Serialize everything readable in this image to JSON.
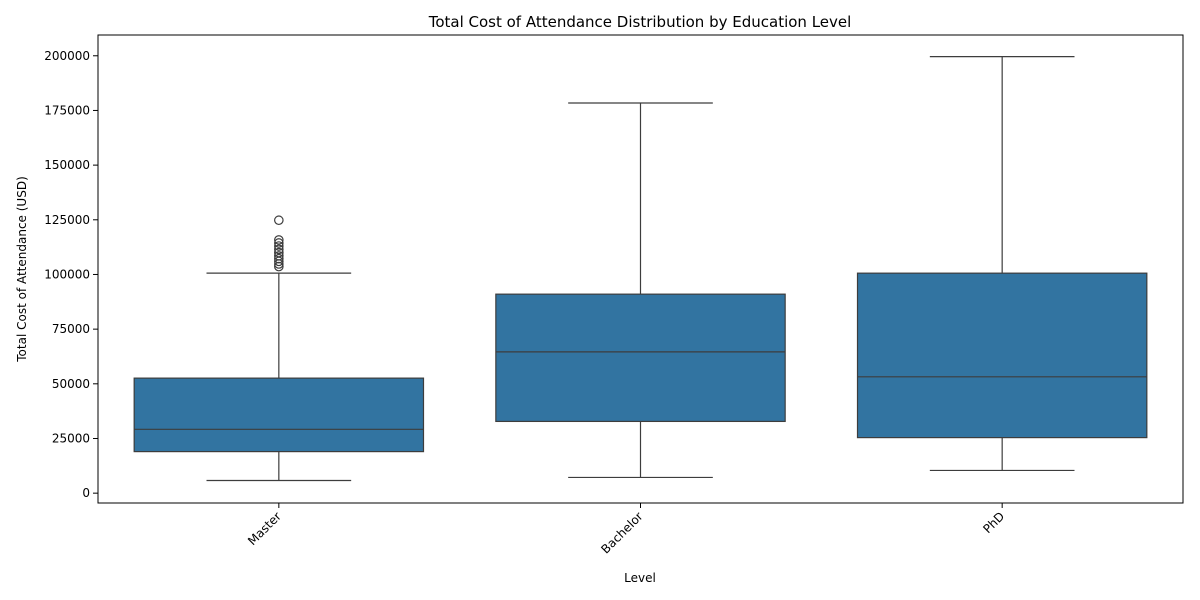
{
  "chart_data": {
    "type": "box",
    "title": "Total Cost of Attendance Distribution by Education Level",
    "xlabel": "Level",
    "ylabel": "Total Cost of Attendance (USD)",
    "ylim": [
      -4500,
      209500
    ],
    "yticks": [
      0,
      25000,
      50000,
      75000,
      100000,
      125000,
      150000,
      175000,
      200000
    ],
    "categories": [
      "Master",
      "Bachelor",
      "PhD"
    ],
    "box_color": "#3274a1",
    "line_color": "#3d3d3d",
    "grid": false,
    "legend": "none",
    "boxes": [
      {
        "name": "Master",
        "whisker_low": 5800,
        "q1": 19000,
        "median": 29200,
        "q3": 52600,
        "whisker_high": 100600,
        "outliers": [
          103600,
          104800,
          106000,
          107200,
          108500,
          110000,
          111500,
          113000,
          114400,
          115800,
          124800
        ]
      },
      {
        "name": "Bachelor",
        "whisker_low": 7200,
        "q1": 32800,
        "median": 64600,
        "q3": 91000,
        "whisker_high": 178400,
        "outliers": []
      },
      {
        "name": "PhD",
        "whisker_low": 10400,
        "q1": 25400,
        "median": 53200,
        "q3": 100600,
        "whisker_high": 199600,
        "outliers": []
      }
    ]
  }
}
